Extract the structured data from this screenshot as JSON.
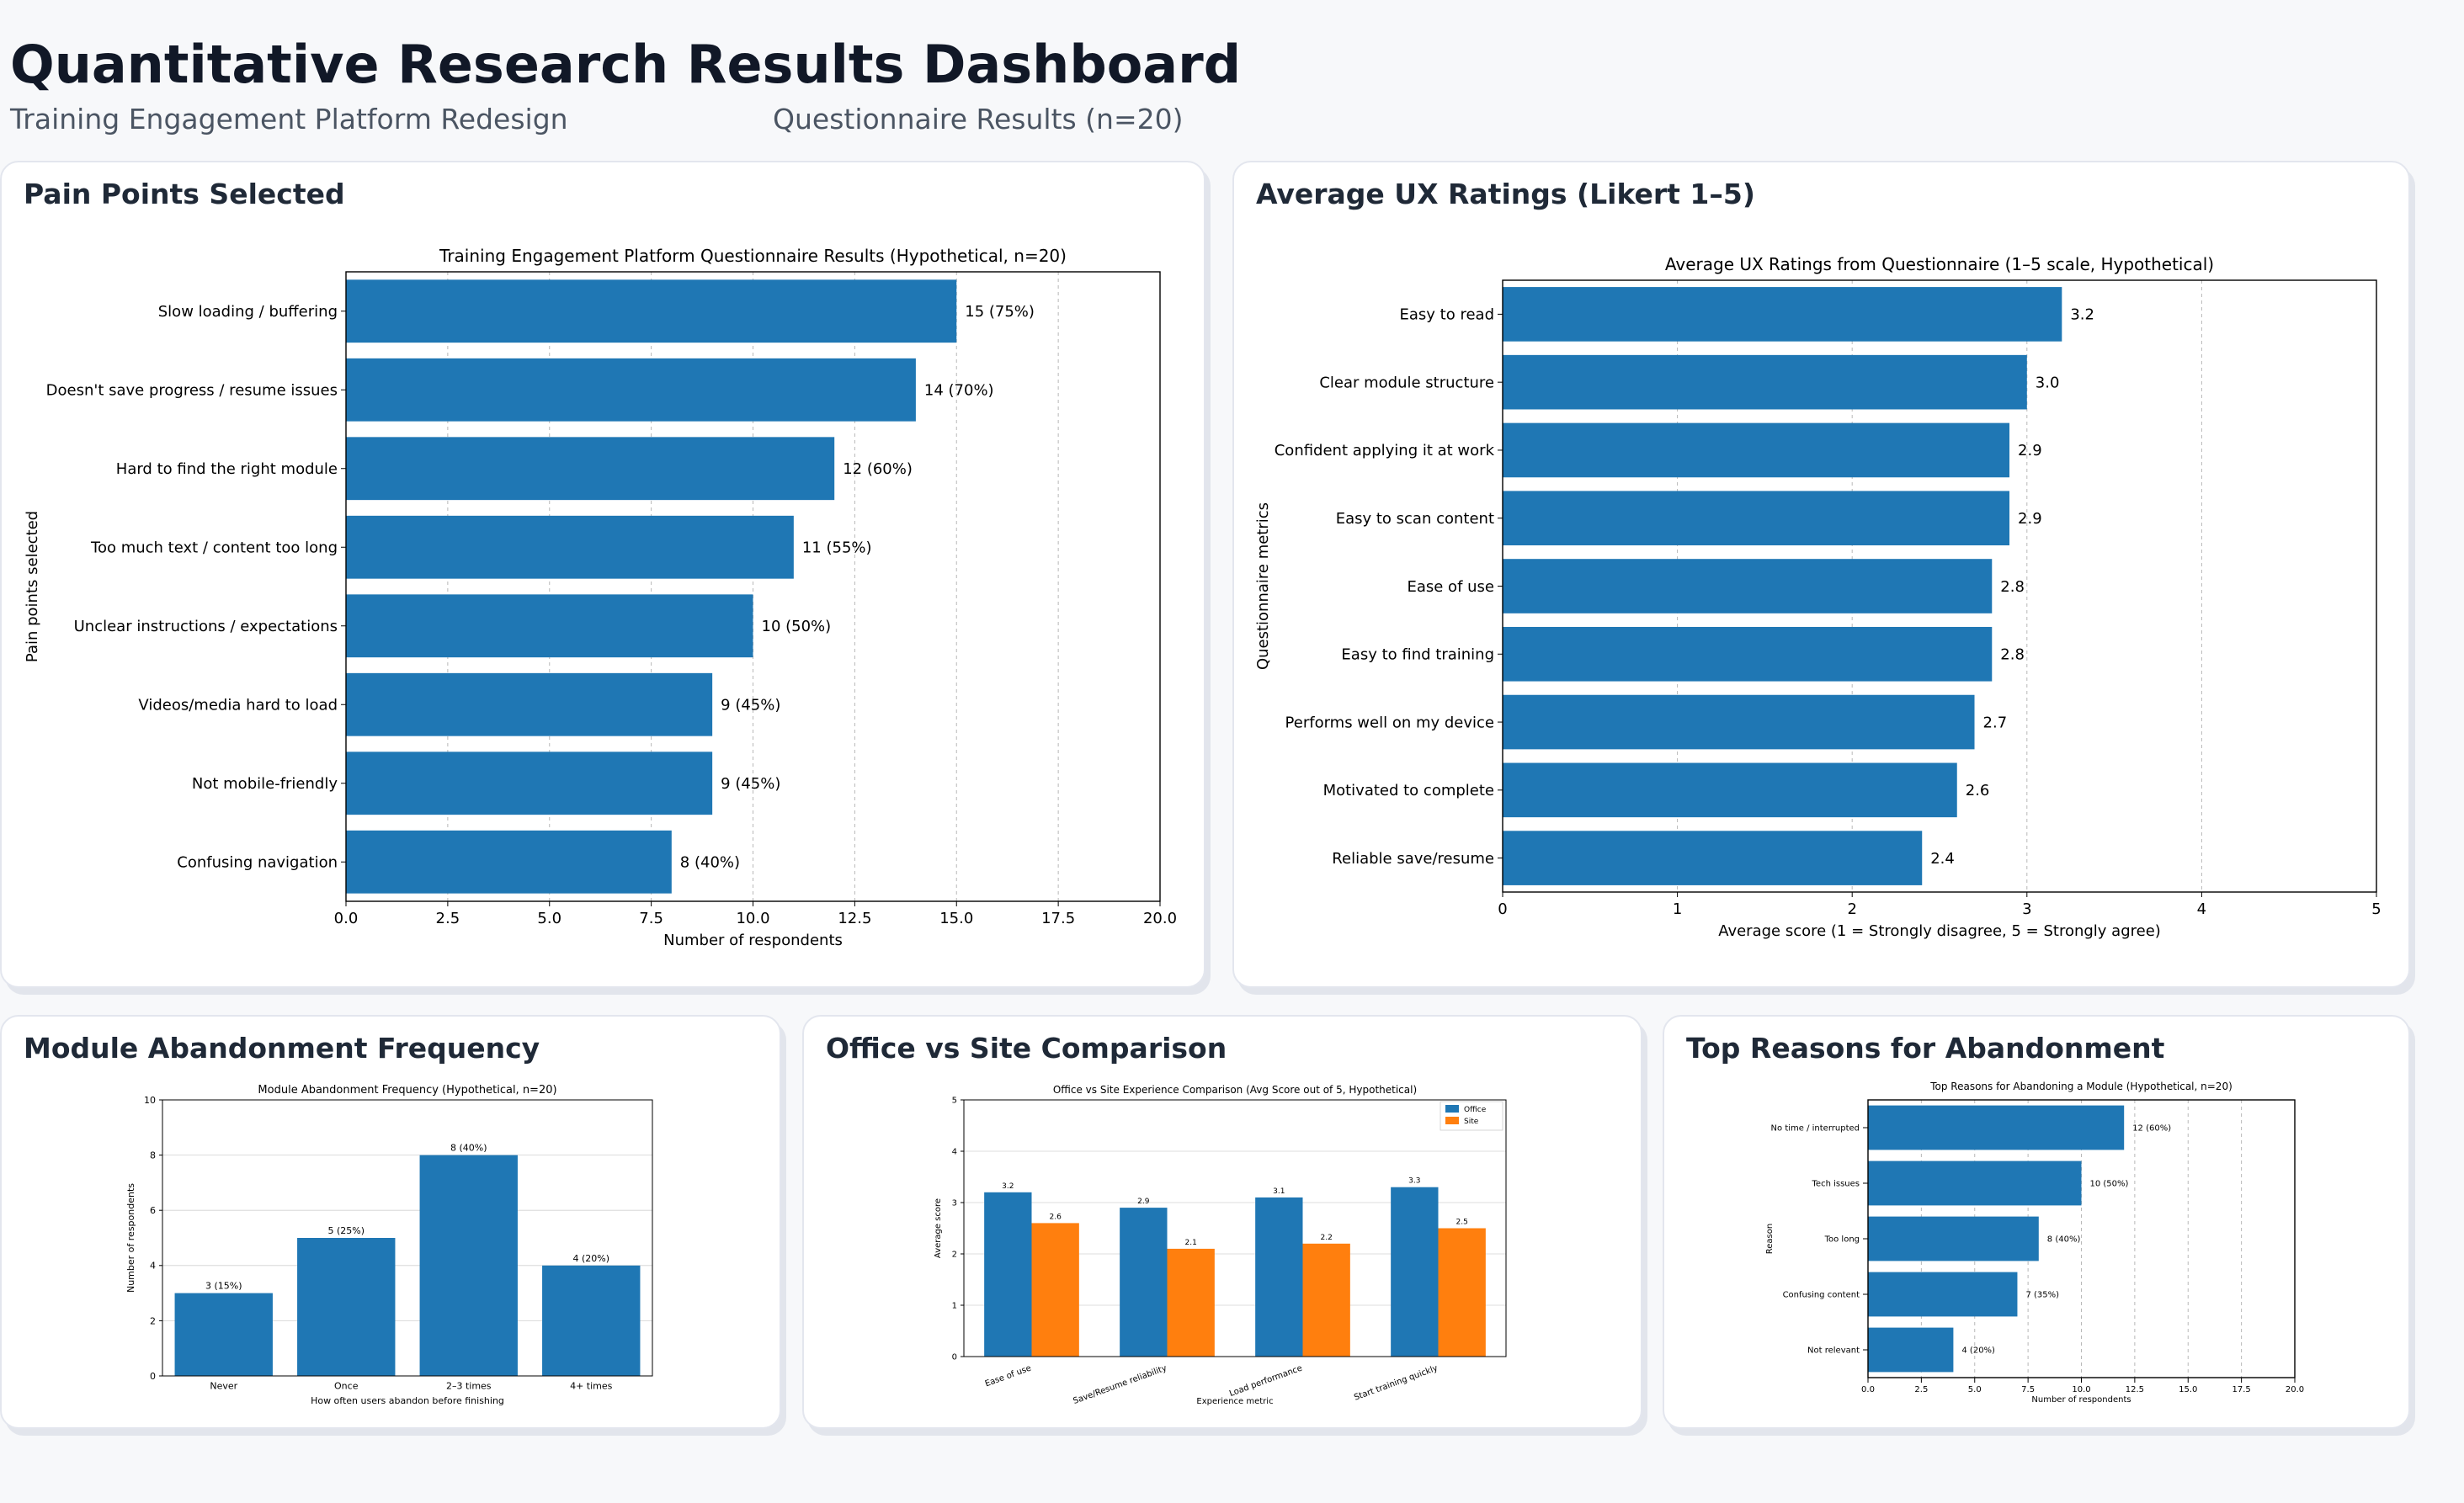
{
  "header": {
    "title": "Quantitative Research Results Dashboard",
    "subtitle_left": "Training Engagement Platform Redesign",
    "subtitle_right": "Questionnaire Results (n=20)"
  },
  "colors": {
    "blue": "#1f77b4",
    "orange": "#ff7f0e"
  },
  "cards": {
    "pain": {
      "title": "Pain Points Selected"
    },
    "ux": {
      "title": "Average UX Ratings (Likert 1–5)"
    },
    "abandon": {
      "title": "Module Abandonment Frequency"
    },
    "office": {
      "title": "Office vs Site Comparison"
    },
    "reasons": {
      "title": "Top Reasons for Abandonment"
    }
  },
  "chart_data": [
    {
      "id": "pain",
      "type": "bar",
      "orientation": "horizontal",
      "title": "Training Engagement Platform Questionnaire Results (Hypothetical, n=20)",
      "xlabel": "Number of respondents",
      "ylabel": "Pain points selected",
      "categories": [
        "Slow loading / buffering",
        "Doesn't save progress / resume issues",
        "Hard to find the right module",
        "Too much text / content too long",
        "Unclear instructions / expectations",
        "Videos/media hard to load",
        "Not mobile-friendly",
        "Confusing navigation"
      ],
      "values": [
        15,
        14,
        12,
        11,
        10,
        9,
        9,
        8
      ],
      "labels": [
        "15 (75%)",
        "14 (70%)",
        "12 (60%)",
        "11 (55%)",
        "10 (50%)",
        "9 (45%)",
        "9 (45%)",
        "8 (40%)"
      ],
      "xlim": [
        0,
        20
      ],
      "ticks": [
        "0.0",
        "2.5",
        "5.0",
        "7.5",
        "10.0",
        "12.5",
        "15.0",
        "17.5",
        "20.0"
      ],
      "tick_values": [
        0,
        2.5,
        5,
        7.5,
        10,
        12.5,
        15,
        17.5,
        20
      ],
      "grid": "x"
    },
    {
      "id": "ux",
      "type": "bar",
      "orientation": "horizontal",
      "title": "Average UX Ratings from Questionnaire (1–5 scale, Hypothetical)",
      "xlabel": "Average score (1 = Strongly disagree, 5 = Strongly agree)",
      "ylabel": "Questionnaire metrics",
      "categories": [
        "Easy to read",
        "Clear module structure",
        "Confident applying it at work",
        "Easy to scan content",
        "Ease of use",
        "Easy to find training",
        "Performs well on my device",
        "Motivated to complete",
        "Reliable save/resume"
      ],
      "values": [
        3.2,
        3.0,
        2.9,
        2.9,
        2.8,
        2.8,
        2.7,
        2.6,
        2.4
      ],
      "labels": [
        "3.2",
        "3.0",
        "2.9",
        "2.9",
        "2.8",
        "2.8",
        "2.7",
        "2.6",
        "2.4"
      ],
      "xlim": [
        0,
        5
      ],
      "ticks": [
        "0",
        "1",
        "2",
        "3",
        "4",
        "5"
      ],
      "tick_values": [
        0,
        1,
        2,
        3,
        4,
        5
      ],
      "grid": "x"
    },
    {
      "id": "abandon",
      "type": "bar",
      "orientation": "vertical",
      "title": "Module Abandonment Frequency (Hypothetical, n=20)",
      "xlabel": "How often users abandon before finishing",
      "ylabel": "Number of respondents",
      "categories": [
        "Never",
        "Once",
        "2–3 times",
        "4+ times"
      ],
      "values": [
        3,
        5,
        8,
        4
      ],
      "labels": [
        "3 (15%)",
        "5 (25%)",
        "8 (40%)",
        "4 (20%)"
      ],
      "ylim": [
        0,
        10
      ],
      "ticks": [
        "0",
        "2",
        "4",
        "6",
        "8",
        "10"
      ],
      "tick_values": [
        0,
        2,
        4,
        6,
        8,
        10
      ],
      "grid": "y"
    },
    {
      "id": "office",
      "type": "bar",
      "orientation": "grouped",
      "title": "Office vs Site Experience Comparison (Avg Score out of 5, Hypothetical)",
      "xlabel": "Experience metric",
      "ylabel": "Average score",
      "categories": [
        "Ease of use",
        "Save/Resume reliability",
        "Load performance",
        "Start training quickly"
      ],
      "series": [
        {
          "name": "Office",
          "values": [
            3.2,
            2.9,
            3.1,
            3.3
          ],
          "labels": [
            "3.2",
            "2.9",
            "3.1",
            "3.3"
          ]
        },
        {
          "name": "Site",
          "values": [
            2.6,
            2.1,
            2.2,
            2.5
          ],
          "labels": [
            "2.6",
            "2.1",
            "2.2",
            "2.5"
          ]
        }
      ],
      "ylim": [
        0,
        5
      ],
      "ticks": [
        "0",
        "1",
        "2",
        "3",
        "4",
        "5"
      ],
      "tick_values": [
        0,
        1,
        2,
        3,
        4,
        5
      ],
      "legend": "top-right",
      "grid": "y"
    },
    {
      "id": "reasons",
      "type": "bar",
      "orientation": "horizontal",
      "title": "Top Reasons for Abandoning a Module (Hypothetical, n=20)",
      "xlabel": "Number of respondents",
      "ylabel": "Reason",
      "categories": [
        "No time / interrupted",
        "Tech issues",
        "Too long",
        "Confusing content",
        "Not relevant"
      ],
      "values": [
        12,
        10,
        8,
        7,
        4
      ],
      "labels": [
        "12 (60%)",
        "10 (50%)",
        "8 (40%)",
        "7 (35%)",
        "4 (20%)"
      ],
      "xlim": [
        0,
        20
      ],
      "ticks": [
        "0.0",
        "2.5",
        "5.0",
        "7.5",
        "10.0",
        "12.5",
        "15.0",
        "17.5",
        "20.0"
      ],
      "tick_values": [
        0,
        2.5,
        5,
        7.5,
        10,
        12.5,
        15,
        17.5,
        20
      ],
      "grid": "x"
    }
  ]
}
